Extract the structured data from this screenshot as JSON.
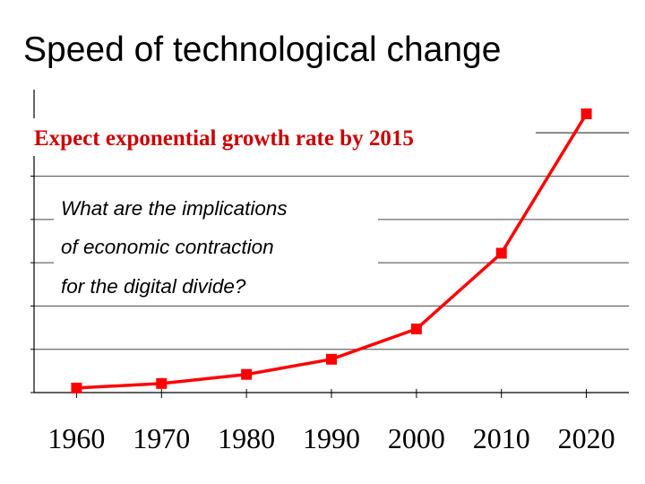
{
  "slide": {
    "title": "Speed of technological change"
  },
  "chart_data": {
    "type": "line",
    "title": "",
    "xlabel": "",
    "ylabel": "",
    "x": [
      1960,
      1970,
      1980,
      1990,
      2000,
      2010,
      2020
    ],
    "series": [
      {
        "values": [
          1.5,
          3,
          6,
          11,
          21,
          46,
          92
        ]
      }
    ],
    "xlim": [
      1955,
      2025
    ],
    "ylim": [
      0,
      100
    ],
    "xticks": [
      "1960",
      "1970",
      "1980",
      "1990",
      "2000",
      "2010",
      "2020"
    ],
    "grid": true,
    "y_tick_labels_visible": false,
    "annotations": {
      "heading": "Expect exponential growth rate by 2015",
      "question_lines": [
        "What are the implications",
        "of economic contraction",
        "for the digital divide?"
      ]
    },
    "colors": {
      "series": "#ff0000",
      "heading": "#cc0000",
      "grid": "#444444"
    }
  }
}
